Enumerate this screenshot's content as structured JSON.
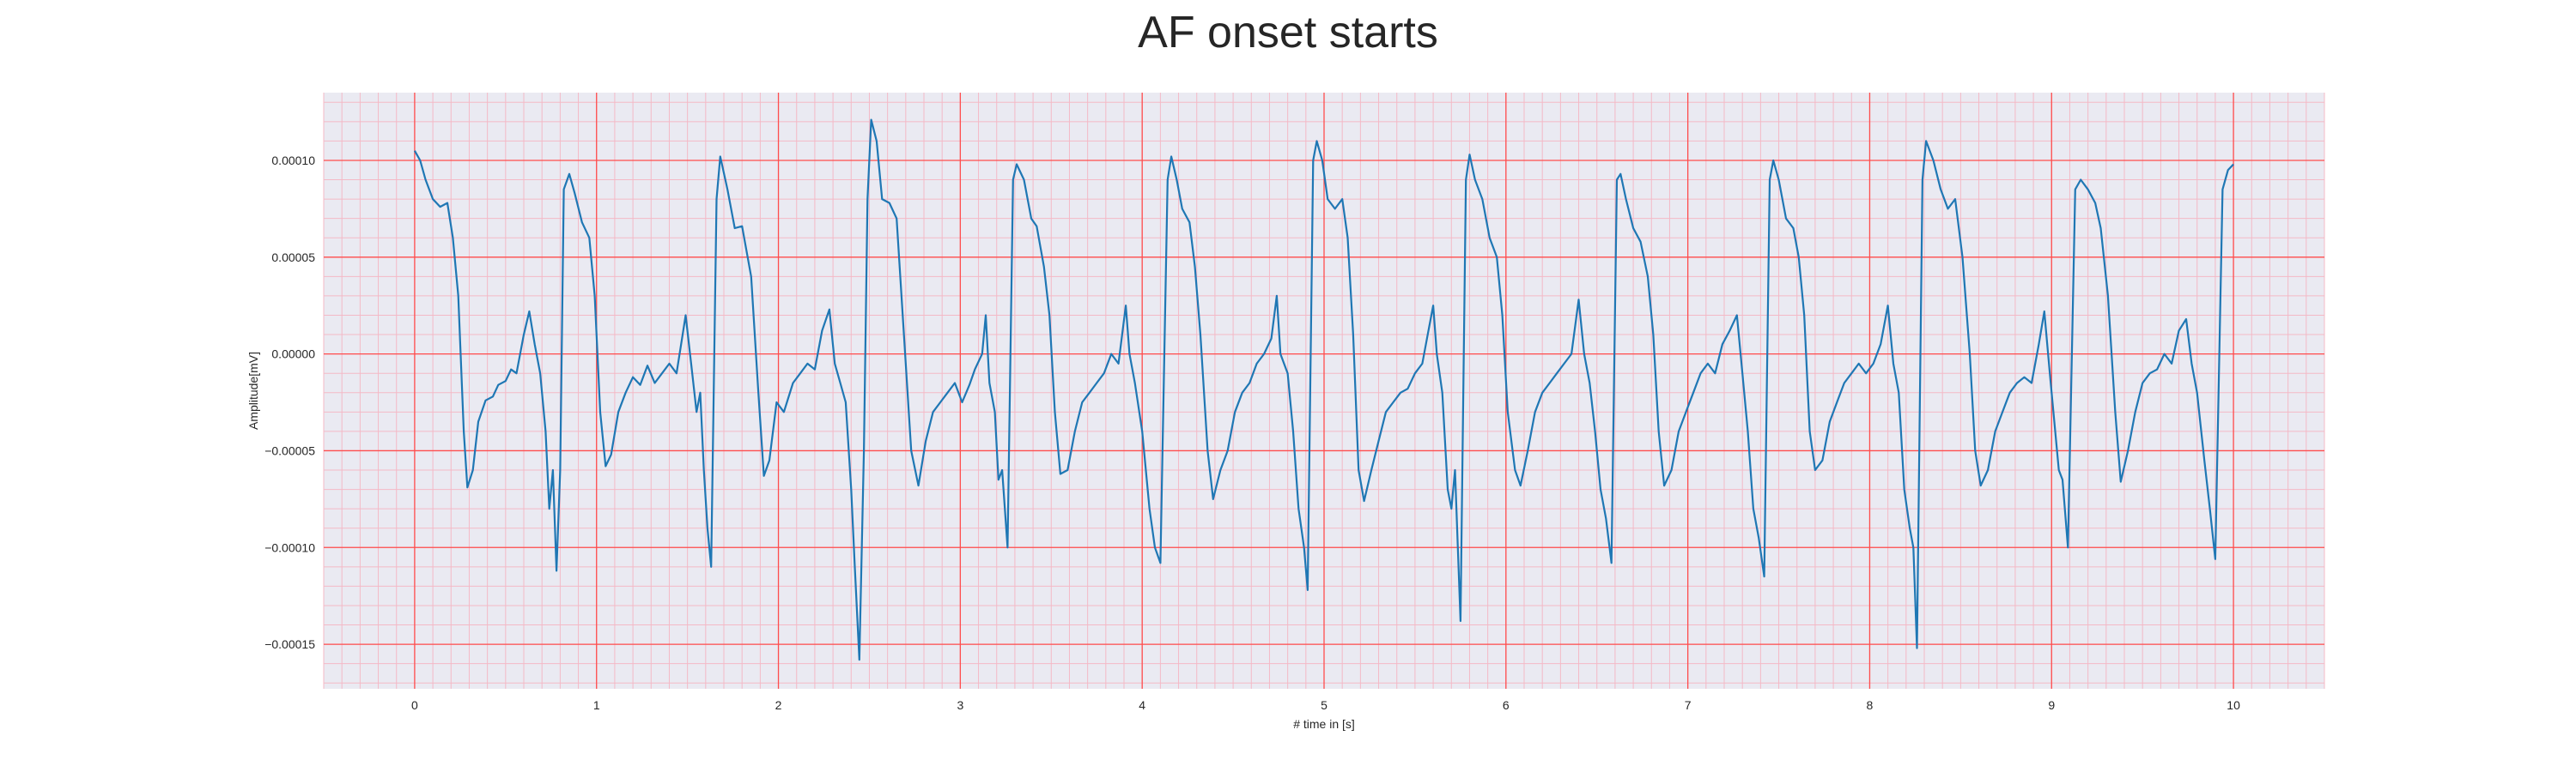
{
  "chart_data": {
    "type": "line",
    "title": "AF onset starts",
    "xlabel": "# time in [s]",
    "ylabel": "Amplitude[mV]",
    "xlim": [
      -0.5,
      10.5
    ],
    "ylim": [
      -0.000173,
      0.000135
    ],
    "x_ticks": [
      0,
      1,
      2,
      3,
      4,
      5,
      6,
      7,
      8,
      9,
      10
    ],
    "x_tick_labels": [
      "0",
      "1",
      "2",
      "3",
      "4",
      "5",
      "6",
      "7",
      "8",
      "9",
      "10"
    ],
    "y_ticks": [
      0.0001,
      5e-05,
      0.0,
      -5e-05,
      -0.0001,
      -0.00015
    ],
    "y_tick_labels": [
      "0.00010",
      "0.00005",
      "0.00000",
      "−0.00005",
      "−0.00010",
      "−0.00015"
    ],
    "grid": true,
    "minor_grid": true,
    "colors": {
      "background": "#eaeaf2",
      "major_grid": "#ff4d4d",
      "minor_grid": "#f4b9c6",
      "line": "#1f77b4"
    },
    "series": [
      {
        "values": [
          [
            0.0,
            0.000105
          ],
          [
            0.03,
            0.0001
          ],
          [
            0.06,
            9e-05
          ],
          [
            0.1,
            8e-05
          ],
          [
            0.14,
            7.6e-05
          ],
          [
            0.18,
            7.8e-05
          ],
          [
            0.21,
            6e-05
          ],
          [
            0.24,
            3e-05
          ],
          [
            0.27,
            -4e-05
          ],
          [
            0.29,
            -6.9e-05
          ],
          [
            0.32,
            -6e-05
          ],
          [
            0.35,
            -3.5e-05
          ],
          [
            0.39,
            -2.4e-05
          ],
          [
            0.43,
            -2.2e-05
          ],
          [
            0.46,
            -1.6e-05
          ],
          [
            0.5,
            -1.4e-05
          ],
          [
            0.53,
            -8e-06
          ],
          [
            0.56,
            -1e-05
          ],
          [
            0.6,
            1e-05
          ],
          [
            0.63,
            2.2e-05
          ],
          [
            0.66,
            5e-06
          ],
          [
            0.69,
            -1e-05
          ],
          [
            0.72,
            -4e-05
          ],
          [
            0.74,
            -8e-05
          ],
          [
            0.76,
            -6e-05
          ],
          [
            0.78,
            -0.000112
          ],
          [
            0.8,
            -6e-05
          ],
          [
            0.82,
            8.5e-05
          ],
          [
            0.85,
            9.3e-05
          ],
          [
            0.88,
            8.3e-05
          ],
          [
            0.92,
            6.8e-05
          ],
          [
            0.96,
            6e-05
          ],
          [
            0.99,
            3e-05
          ],
          [
            1.02,
            -3e-05
          ],
          [
            1.05,
            -5.8e-05
          ],
          [
            1.08,
            -5.2e-05
          ],
          [
            1.12,
            -3e-05
          ],
          [
            1.16,
            -2e-05
          ],
          [
            1.2,
            -1.2e-05
          ],
          [
            1.24,
            -1.6e-05
          ],
          [
            1.28,
            -6e-06
          ],
          [
            1.32,
            -1.5e-05
          ],
          [
            1.36,
            -1e-05
          ],
          [
            1.4,
            -5e-06
          ],
          [
            1.44,
            -1e-05
          ],
          [
            1.47,
            8e-06
          ],
          [
            1.49,
            2e-05
          ],
          [
            1.52,
            -5e-06
          ],
          [
            1.55,
            -3e-05
          ],
          [
            1.57,
            -2e-05
          ],
          [
            1.59,
            -6e-05
          ],
          [
            1.61,
            -9e-05
          ],
          [
            1.63,
            -0.00011
          ],
          [
            1.66,
            8e-05
          ],
          [
            1.68,
            0.000102
          ],
          [
            1.72,
            8.5e-05
          ],
          [
            1.76,
            6.5e-05
          ],
          [
            1.8,
            6.6e-05
          ],
          [
            1.85,
            4e-05
          ],
          [
            1.89,
            -2e-05
          ],
          [
            1.92,
            -6.3e-05
          ],
          [
            1.95,
            -5.5e-05
          ],
          [
            1.99,
            -2.5e-05
          ],
          [
            2.03,
            -3e-05
          ],
          [
            2.08,
            -1.5e-05
          ],
          [
            2.12,
            -1e-05
          ],
          [
            2.16,
            -5e-06
          ],
          [
            2.2,
            -8e-06
          ],
          [
            2.24,
            1.2e-05
          ],
          [
            2.28,
            2.3e-05
          ],
          [
            2.31,
            -5e-06
          ],
          [
            2.34,
            -1.5e-05
          ],
          [
            2.37,
            -2.5e-05
          ],
          [
            2.4,
            -7e-05
          ],
          [
            2.42,
            -0.00011
          ],
          [
            2.445,
            -0.000158
          ],
          [
            2.47,
            -5e-05
          ],
          [
            2.49,
            8e-05
          ],
          [
            2.51,
            0.000121
          ],
          [
            2.54,
            0.00011
          ],
          [
            2.57,
            8e-05
          ],
          [
            2.61,
            7.8e-05
          ],
          [
            2.65,
            7e-05
          ],
          [
            2.69,
            1e-05
          ],
          [
            2.73,
            -5e-05
          ],
          [
            2.77,
            -6.8e-05
          ],
          [
            2.81,
            -4.5e-05
          ],
          [
            2.85,
            -3e-05
          ],
          [
            2.89,
            -2.5e-05
          ],
          [
            2.93,
            -2e-05
          ],
          [
            2.97,
            -1.5e-05
          ],
          [
            3.01,
            -2.5e-05
          ],
          [
            3.05,
            -1.6e-05
          ],
          [
            3.08,
            -8e-06
          ],
          [
            3.12,
            0.0
          ],
          [
            3.14,
            2e-05
          ],
          [
            3.16,
            -1.5e-05
          ],
          [
            3.19,
            -3e-05
          ],
          [
            3.21,
            -6.5e-05
          ],
          [
            3.23,
            -6e-05
          ],
          [
            3.26,
            -0.0001
          ],
          [
            3.29,
            9e-05
          ],
          [
            3.31,
            9.8e-05
          ],
          [
            3.35,
            9e-05
          ],
          [
            3.39,
            7e-05
          ],
          [
            3.42,
            6.6e-05
          ],
          [
            3.46,
            4.5e-05
          ],
          [
            3.49,
            2e-05
          ],
          [
            3.52,
            -3e-05
          ],
          [
            3.55,
            -6.2e-05
          ],
          [
            3.59,
            -6e-05
          ],
          [
            3.63,
            -4e-05
          ],
          [
            3.67,
            -2.5e-05
          ],
          [
            3.71,
            -2e-05
          ],
          [
            3.75,
            -1.5e-05
          ],
          [
            3.79,
            -1e-05
          ],
          [
            3.83,
            0.0
          ],
          [
            3.87,
            -5e-06
          ],
          [
            3.91,
            2.5e-05
          ],
          [
            3.93,
            0.0
          ],
          [
            3.96,
            -1.5e-05
          ],
          [
            4.0,
            -4e-05
          ],
          [
            4.04,
            -8e-05
          ],
          [
            4.07,
            -0.0001
          ],
          [
            4.1,
            -0.000108
          ],
          [
            4.14,
            9e-05
          ],
          [
            4.16,
            0.000102
          ],
          [
            4.19,
            9e-05
          ],
          [
            4.22,
            7.5e-05
          ],
          [
            4.26,
            6.8e-05
          ],
          [
            4.29,
            4.5e-05
          ],
          [
            4.32,
            1e-05
          ],
          [
            4.36,
            -5e-05
          ],
          [
            4.39,
            -7.5e-05
          ],
          [
            4.43,
            -6e-05
          ],
          [
            4.47,
            -5e-05
          ],
          [
            4.51,
            -3e-05
          ],
          [
            4.55,
            -2e-05
          ],
          [
            4.59,
            -1.5e-05
          ],
          [
            4.63,
            -5e-06
          ],
          [
            4.67,
            0.0
          ],
          [
            4.71,
            8e-06
          ],
          [
            4.74,
            3e-05
          ],
          [
            4.76,
            0.0
          ],
          [
            4.8,
            -1e-05
          ],
          [
            4.83,
            -4e-05
          ],
          [
            4.86,
            -8e-05
          ],
          [
            4.89,
            -0.0001
          ],
          [
            4.91,
            -0.000122
          ],
          [
            4.94,
            0.0001
          ],
          [
            4.96,
            0.00011
          ],
          [
            4.99,
            0.0001
          ],
          [
            5.02,
            8e-05
          ],
          [
            5.06,
            7.5e-05
          ],
          [
            5.1,
            8e-05
          ],
          [
            5.13,
            6e-05
          ],
          [
            5.16,
            1e-05
          ],
          [
            5.19,
            -6e-05
          ],
          [
            5.22,
            -7.6e-05
          ],
          [
            5.26,
            -6e-05
          ],
          [
            5.3,
            -4.5e-05
          ],
          [
            5.34,
            -3e-05
          ],
          [
            5.38,
            -2.5e-05
          ],
          [
            5.42,
            -2e-05
          ],
          [
            5.46,
            -1.8e-05
          ],
          [
            5.5,
            -1e-05
          ],
          [
            5.54,
            -5e-06
          ],
          [
            5.57,
            1e-05
          ],
          [
            5.6,
            2.5e-05
          ],
          [
            5.62,
            0.0
          ],
          [
            5.65,
            -2e-05
          ],
          [
            5.68,
            -7e-05
          ],
          [
            5.7,
            -8e-05
          ],
          [
            5.72,
            -6e-05
          ],
          [
            5.75,
            -0.000138
          ],
          [
            5.78,
            9e-05
          ],
          [
            5.8,
            0.000103
          ],
          [
            5.83,
            9e-05
          ],
          [
            5.87,
            8e-05
          ],
          [
            5.91,
            6e-05
          ],
          [
            5.95,
            5e-05
          ],
          [
            5.98,
            2e-05
          ],
          [
            6.01,
            -3e-05
          ],
          [
            6.05,
            -6e-05
          ],
          [
            6.08,
            -6.8e-05
          ],
          [
            6.12,
            -5e-05
          ],
          [
            6.16,
            -3e-05
          ],
          [
            6.2,
            -2e-05
          ],
          [
            6.24,
            -1.5e-05
          ],
          [
            6.28,
            -1e-05
          ],
          [
            6.32,
            -5e-06
          ],
          [
            6.36,
            0.0
          ],
          [
            6.4,
            2.8e-05
          ],
          [
            6.43,
            0.0
          ],
          [
            6.46,
            -1.5e-05
          ],
          [
            6.49,
            -4e-05
          ],
          [
            6.52,
            -7e-05
          ],
          [
            6.55,
            -8.5e-05
          ],
          [
            6.58,
            -0.000108
          ],
          [
            6.61,
            9e-05
          ],
          [
            6.63,
            9.3e-05
          ],
          [
            6.66,
            8e-05
          ],
          [
            6.7,
            6.5e-05
          ],
          [
            6.74,
            5.8e-05
          ],
          [
            6.78,
            4e-05
          ],
          [
            6.81,
            1e-05
          ],
          [
            6.84,
            -4e-05
          ],
          [
            6.87,
            -6.8e-05
          ],
          [
            6.91,
            -6e-05
          ],
          [
            6.95,
            -4e-05
          ],
          [
            6.99,
            -3e-05
          ],
          [
            7.03,
            -2e-05
          ],
          [
            7.07,
            -1e-05
          ],
          [
            7.11,
            -5e-06
          ],
          [
            7.15,
            -1e-05
          ],
          [
            7.19,
            5e-06
          ],
          [
            7.23,
            1.2e-05
          ],
          [
            7.27,
            2e-05
          ],
          [
            7.3,
            -1e-05
          ],
          [
            7.33,
            -4e-05
          ],
          [
            7.36,
            -8e-05
          ],
          [
            7.39,
            -9.5e-05
          ],
          [
            7.42,
            -0.000115
          ],
          [
            7.45,
            9e-05
          ],
          [
            7.47,
            0.0001
          ],
          [
            7.5,
            9e-05
          ],
          [
            7.54,
            7e-05
          ],
          [
            7.58,
            6.5e-05
          ],
          [
            7.61,
            5e-05
          ],
          [
            7.64,
            2e-05
          ],
          [
            7.67,
            -4e-05
          ],
          [
            7.7,
            -6e-05
          ],
          [
            7.74,
            -5.5e-05
          ],
          [
            7.78,
            -3.5e-05
          ],
          [
            7.82,
            -2.5e-05
          ],
          [
            7.86,
            -1.5e-05
          ],
          [
            7.9,
            -1e-05
          ],
          [
            7.94,
            -5e-06
          ],
          [
            7.98,
            -1e-05
          ],
          [
            8.02,
            -5e-06
          ],
          [
            8.06,
            5e-06
          ],
          [
            8.1,
            2.5e-05
          ],
          [
            8.13,
            -5e-06
          ],
          [
            8.16,
            -2e-05
          ],
          [
            8.19,
            -7e-05
          ],
          [
            8.22,
            -9e-05
          ],
          [
            8.24,
            -0.0001
          ],
          [
            8.26,
            -0.000152
          ],
          [
            8.29,
            9e-05
          ],
          [
            8.31,
            0.00011
          ],
          [
            8.35,
            0.0001
          ],
          [
            8.39,
            8.5e-05
          ],
          [
            8.43,
            7.5e-05
          ],
          [
            8.47,
            8e-05
          ],
          [
            8.51,
            5e-05
          ],
          [
            8.55,
            0.0
          ],
          [
            8.58,
            -5e-05
          ],
          [
            8.61,
            -6.8e-05
          ],
          [
            8.65,
            -6e-05
          ],
          [
            8.69,
            -4e-05
          ],
          [
            8.73,
            -3e-05
          ],
          [
            8.77,
            -2e-05
          ],
          [
            8.81,
            -1.5e-05
          ],
          [
            8.85,
            -1.2e-05
          ],
          [
            8.89,
            -1.5e-05
          ],
          [
            8.93,
            5e-06
          ],
          [
            8.96,
            2.2e-05
          ],
          [
            8.99,
            -1e-05
          ],
          [
            9.02,
            -4e-05
          ],
          [
            9.04,
            -6e-05
          ],
          [
            9.06,
            -6.5e-05
          ],
          [
            9.09,
            -0.0001
          ],
          [
            9.13,
            8.5e-05
          ],
          [
            9.16,
            9e-05
          ],
          [
            9.2,
            8.5e-05
          ],
          [
            9.24,
            7.8e-05
          ],
          [
            9.27,
            6.5e-05
          ],
          [
            9.31,
            3e-05
          ],
          [
            9.35,
            -3e-05
          ],
          [
            9.38,
            -6.6e-05
          ],
          [
            9.42,
            -5e-05
          ],
          [
            9.46,
            -3e-05
          ],
          [
            9.5,
            -1.5e-05
          ],
          [
            9.54,
            -1e-05
          ],
          [
            9.58,
            -8e-06
          ],
          [
            9.62,
            0.0
          ],
          [
            9.66,
            -5e-06
          ],
          [
            9.7,
            1.2e-05
          ],
          [
            9.74,
            1.8e-05
          ],
          [
            9.77,
            -5e-06
          ],
          [
            9.8,
            -2e-05
          ],
          [
            9.84,
            -5.5e-05
          ],
          [
            9.87,
            -8e-05
          ],
          [
            9.9,
            -0.000106
          ],
          [
            9.94,
            8.5e-05
          ],
          [
            9.97,
            9.5e-05
          ],
          [
            10.0,
            9.8e-05
          ]
        ]
      }
    ]
  }
}
